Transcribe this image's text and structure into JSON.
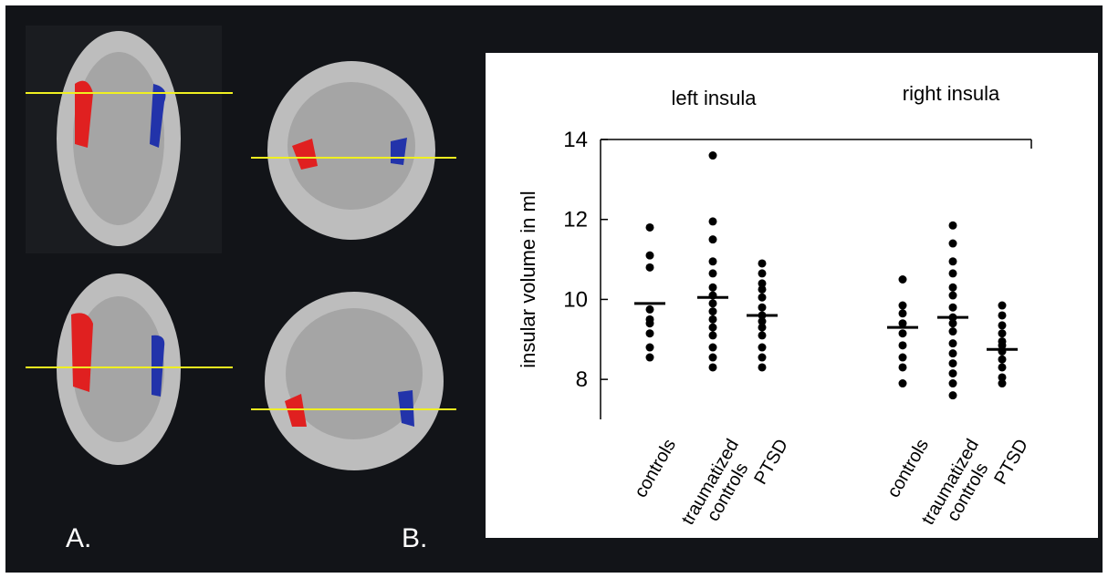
{
  "figure": {
    "panel_labels": [
      "A.",
      "B."
    ]
  },
  "chart_data": {
    "type": "strip",
    "group_labels": [
      "left insula",
      "right insula"
    ],
    "categories": [
      "controls",
      "traumatized controls",
      "PTSD",
      "controls",
      "traumatized controls",
      "PTSD"
    ],
    "values": [
      [
        11.8,
        11.1,
        10.8,
        9.75,
        9.5,
        9.4,
        9.15,
        8.8,
        8.55
      ],
      [
        13.6,
        11.95,
        11.5,
        10.95,
        10.65,
        10.3,
        10.1,
        9.9,
        9.7,
        9.5,
        9.3,
        9.1,
        8.8,
        8.55,
        8.3
      ],
      [
        10.9,
        10.65,
        10.4,
        10.25,
        10.05,
        9.8,
        9.6,
        9.45,
        9.3,
        9.1,
        8.8,
        8.55,
        8.3
      ],
      [
        10.5,
        9.85,
        9.65,
        9.4,
        9.15,
        8.85,
        8.55,
        8.3,
        7.9
      ],
      [
        11.85,
        11.4,
        10.95,
        10.65,
        10.3,
        10.1,
        9.8,
        9.55,
        9.4,
        9.2,
        8.9,
        8.65,
        8.4,
        8.15,
        7.9,
        7.6
      ],
      [
        9.85,
        9.6,
        9.35,
        9.15,
        8.95,
        8.85,
        8.7,
        8.5,
        8.3,
        8.05,
        7.9
      ]
    ],
    "means": [
      9.9,
      10.05,
      9.6,
      9.3,
      9.55,
      8.75
    ],
    "ylabel": "insular volume in ml",
    "ylim": [
      7,
      14
    ],
    "yticks": [
      8,
      10,
      12,
      14
    ],
    "color": "#000000"
  }
}
